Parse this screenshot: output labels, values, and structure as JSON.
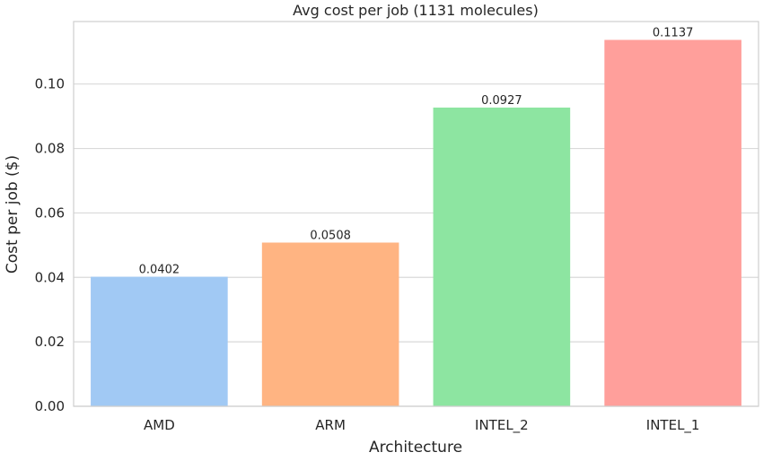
{
  "chart_data": {
    "type": "bar",
    "title": "Avg cost per job (1131 molecules)",
    "xlabel": "Architecture",
    "ylabel": "Cost per job ($)",
    "categories": [
      "AMD",
      "ARM",
      "INTEL_2",
      "INTEL_1"
    ],
    "values": [
      0.0402,
      0.0508,
      0.0927,
      0.1137
    ],
    "value_labels": [
      "0.0402",
      "0.0508",
      "0.0927",
      "0.1137"
    ],
    "colors": [
      "#a1c9f4",
      "#ffb482",
      "#8de5a1",
      "#ff9f9b"
    ],
    "ylim": [
      0,
      0.1194
    ],
    "yticks": [
      0.0,
      0.02,
      0.04,
      0.06,
      0.08,
      0.1
    ],
    "ytick_labels": [
      "0.00",
      "0.02",
      "0.04",
      "0.06",
      "0.08",
      "0.10"
    ],
    "grid": "horizontal",
    "style": "seaborn-whitegrid, pastel palette"
  }
}
